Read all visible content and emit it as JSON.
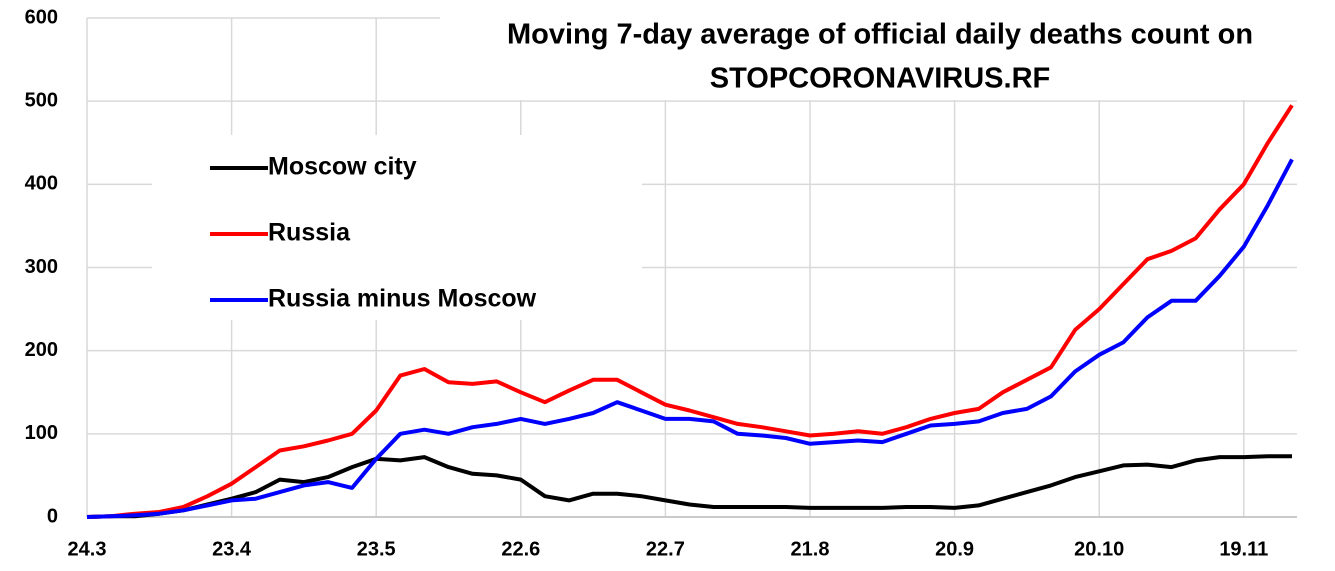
{
  "chart_data": {
    "type": "line",
    "title": [
      "Moving 7-day average of official daily deaths count on",
      "STOPCORONAVIRUS.RF"
    ],
    "x": [
      0,
      5,
      10,
      15,
      20,
      25,
      30,
      35,
      40,
      45,
      50,
      55,
      60,
      65,
      70,
      75,
      80,
      85,
      90,
      95,
      100,
      105,
      110,
      115,
      120,
      125,
      130,
      135,
      140,
      145,
      150,
      155,
      160,
      165,
      170,
      175,
      180,
      185,
      190,
      195,
      200,
      205,
      210,
      215,
      220,
      225,
      230,
      235,
      240,
      245,
      250
    ],
    "series": [
      {
        "name": "Moscow city",
        "color": "#000000",
        "values": [
          0,
          1,
          1,
          4,
          8,
          15,
          22,
          30,
          45,
          42,
          48,
          60,
          70,
          68,
          72,
          60,
          52,
          50,
          45,
          25,
          20,
          28,
          28,
          25,
          20,
          15,
          12,
          12,
          12,
          12,
          11,
          11,
          11,
          11,
          12,
          12,
          11,
          14,
          22,
          30,
          38,
          48,
          55,
          62,
          63,
          60,
          68,
          72,
          72,
          73,
          73
        ]
      },
      {
        "name": "Russia",
        "color": "#ff0000",
        "values": [
          0,
          1,
          4,
          6,
          12,
          25,
          40,
          60,
          80,
          85,
          92,
          100,
          128,
          170,
          178,
          162,
          160,
          163,
          150,
          138,
          152,
          165,
          165,
          150,
          135,
          128,
          120,
          112,
          108,
          103,
          98,
          100,
          103,
          100,
          108,
          118,
          125,
          130,
          150,
          165,
          180,
          225,
          250,
          280,
          310,
          320,
          335,
          370,
          400,
          450,
          495
        ]
      },
      {
        "name": "Russia minus Moscow",
        "color": "#0000ff",
        "values": [
          0,
          1,
          2,
          4,
          8,
          14,
          20,
          22,
          30,
          38,
          42,
          35,
          70,
          100,
          105,
          100,
          108,
          112,
          118,
          112,
          118,
          125,
          138,
          128,
          118,
          118,
          115,
          100,
          98,
          95,
          88,
          90,
          92,
          90,
          100,
          110,
          112,
          115,
          125,
          130,
          145,
          175,
          195,
          210,
          240,
          260,
          260,
          290,
          325,
          375,
          430
        ]
      }
    ],
    "xlim": [
      0,
      250
    ],
    "xticks": [
      {
        "value": 0,
        "label": "24.3"
      },
      {
        "value": 30,
        "label": "23.4"
      },
      {
        "value": 60,
        "label": "23.5"
      },
      {
        "value": 90,
        "label": "22.6"
      },
      {
        "value": 120,
        "label": "22.7"
      },
      {
        "value": 150,
        "label": "21.8"
      },
      {
        "value": 180,
        "label": "20.9"
      },
      {
        "value": 210,
        "label": "20.10"
      },
      {
        "value": 240,
        "label": "19.11"
      }
    ],
    "ylim": [
      0,
      600
    ],
    "yticks": [
      0,
      100,
      200,
      300,
      400,
      500,
      600
    ],
    "grid": true
  }
}
